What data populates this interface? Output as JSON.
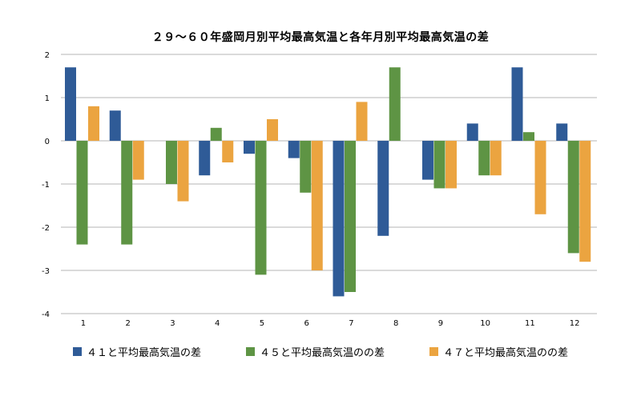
{
  "chart_data": {
    "type": "bar",
    "title": "２９〜６０年盛岡月別平均最高気温と各年月別平均最高気温の差",
    "xlabel": "",
    "ylabel": "",
    "categories": [
      "1",
      "2",
      "3",
      "4",
      "5",
      "6",
      "7",
      "8",
      "9",
      "10",
      "11",
      "12"
    ],
    "ylim": [
      -4,
      2
    ],
    "yticks": [
      2,
      1,
      0,
      -1,
      -2,
      -3,
      -4
    ],
    "grid": true,
    "legend_position": "bottom",
    "series": [
      {
        "name": "４１と平均最高気温の差",
        "color": "#2f5b97",
        "values": [
          1.7,
          0.7,
          0,
          -0.8,
          -0.3,
          -0.4,
          -3.6,
          -2.2,
          -0.9,
          0.4,
          1.7,
          0.4
        ]
      },
      {
        "name": "４５と平均最高気温のの差",
        "color": "#5e9444",
        "values": [
          -2.4,
          -2.4,
          -1.0,
          0.3,
          -3.1,
          -1.2,
          -3.5,
          1.7,
          -1.1,
          -0.8,
          0.2,
          -2.6
        ]
      },
      {
        "name": "４７と平均最高気温のの差",
        "color": "#eba440",
        "values": [
          0.8,
          -0.9,
          -1.4,
          -0.5,
          0.5,
          -3.0,
          0.9,
          0,
          -1.1,
          -0.8,
          -1.7,
          -2.8
        ]
      }
    ]
  }
}
